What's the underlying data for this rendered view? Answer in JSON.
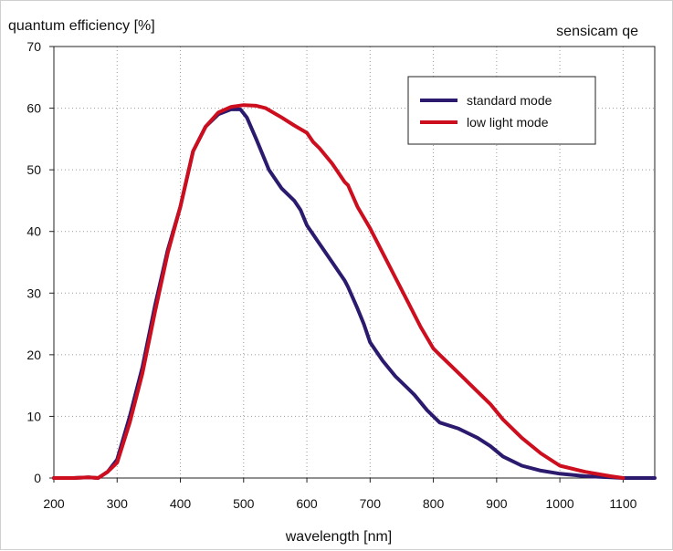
{
  "chart_data": {
    "type": "line",
    "title": "sensicam qe",
    "ylabel": "quantum efficiency [%]",
    "xlabel": "wavelength [nm]",
    "xlim": [
      200,
      1150
    ],
    "ylim": [
      0,
      70
    ],
    "xticks": [
      200,
      300,
      400,
      500,
      600,
      700,
      800,
      900,
      1000,
      1100
    ],
    "yticks": [
      0,
      10,
      20,
      30,
      40,
      50,
      60,
      70
    ],
    "grid": true,
    "legend_position": "top-right",
    "series": [
      {
        "name": "standard mode",
        "color": "#2b1a6e",
        "x": [
          200,
          230,
          255,
          270,
          285,
          300,
          320,
          340,
          360,
          380,
          400,
          420,
          440,
          460,
          480,
          495,
          505,
          520,
          540,
          560,
          580,
          590,
          600,
          620,
          640,
          660,
          665,
          680,
          690,
          700,
          720,
          740,
          760,
          770,
          790,
          810,
          840,
          870,
          890,
          910,
          940,
          970,
          1000,
          1040,
          1080,
          1100,
          1150
        ],
        "y": [
          0,
          0,
          0.1,
          0,
          1,
          3,
          10,
          18,
          28,
          37,
          44,
          53,
          57,
          59,
          59.8,
          59.8,
          58.5,
          55,
          50,
          47,
          45,
          43.5,
          41,
          38,
          35,
          32,
          31,
          27.5,
          25,
          22,
          19,
          16.5,
          14.5,
          13.5,
          11,
          9,
          8,
          6.5,
          5.2,
          3.5,
          2,
          1.2,
          0.7,
          0.3,
          0.1,
          0,
          0
        ]
      },
      {
        "name": "low light mode",
        "color": "#cc0e1e",
        "x": [
          200,
          230,
          255,
          270,
          285,
          300,
          320,
          340,
          360,
          380,
          400,
          420,
          440,
          460,
          480,
          500,
          520,
          535,
          560,
          580,
          600,
          610,
          620,
          640,
          660,
          665,
          680,
          700,
          720,
          740,
          760,
          780,
          800,
          810,
          840,
          870,
          890,
          910,
          940,
          970,
          1000,
          1040,
          1080,
          1100
        ],
        "y": [
          0,
          0,
          0.1,
          0,
          1,
          2.5,
          9,
          17,
          27,
          36.5,
          44,
          53,
          57,
          59.3,
          60.2,
          60.5,
          60.4,
          60,
          58.5,
          57.2,
          56,
          54.5,
          53.5,
          51,
          48,
          47.5,
          44,
          40.5,
          36.5,
          32.5,
          28.5,
          24.5,
          21,
          20,
          17,
          14,
          12,
          9.5,
          6.5,
          4,
          2,
          1,
          0.3,
          0
        ]
      }
    ]
  }
}
